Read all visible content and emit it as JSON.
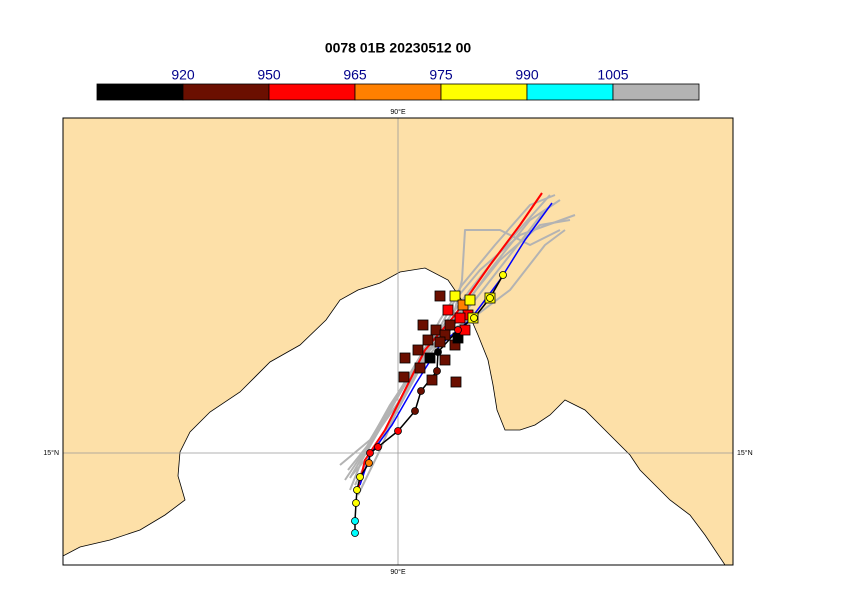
{
  "title": "0078 01B 20230512 00",
  "colorbar": {
    "levels": [
      920,
      950,
      965,
      975,
      990,
      1005
    ],
    "colors": [
      "#000000",
      "#6b0f00",
      "#ff0000",
      "#ff8000",
      "#ffff00",
      "#00ffff",
      "#b3b3b3"
    ],
    "label_color": "#00008b"
  },
  "map": {
    "land_color": "#fde0a8",
    "graticule_color": "#999999",
    "lon_labels": [
      "90°E",
      "90°E"
    ],
    "lat_labels": [
      "15°N",
      "15°N"
    ]
  }
}
